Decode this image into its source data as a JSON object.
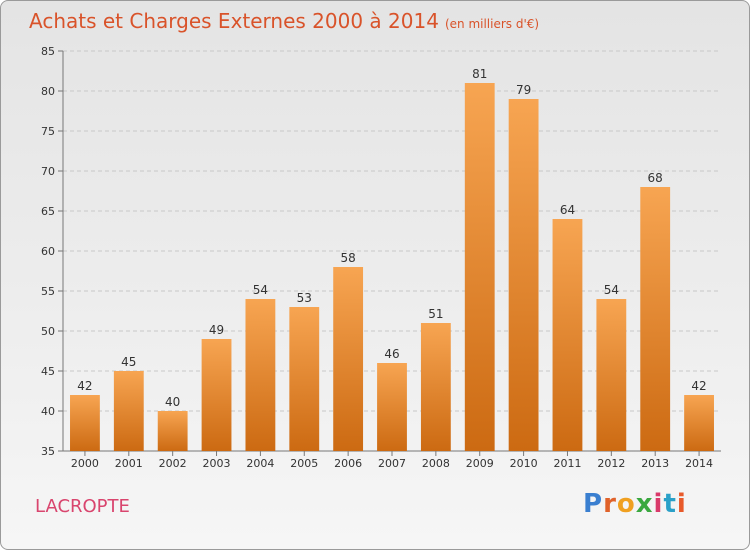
{
  "header": {
    "title": "Achats et Charges Externes 2000 à 2014",
    "subtitle": "(en milliers d'€)"
  },
  "footer": {
    "commune": "LACROPTE",
    "logo_text": "Proxiti"
  },
  "colors": {
    "bar_top": "#f7a552",
    "bar_bottom": "#cc6a12",
    "title": "#d9532a",
    "commune": "#d9456e"
  },
  "chart_data": {
    "type": "bar",
    "categories": [
      "2000",
      "2001",
      "2002",
      "2003",
      "2004",
      "2005",
      "2006",
      "2007",
      "2008",
      "2009",
      "2010",
      "2011",
      "2012",
      "2013",
      "2014"
    ],
    "values": [
      42,
      45,
      40,
      49,
      54,
      53,
      58,
      46,
      51,
      81,
      79,
      64,
      54,
      68,
      42
    ],
    "title": "Achats et Charges Externes 2000 à 2014",
    "xlabel": "",
    "ylabel": "",
    "ylim": [
      35,
      85
    ],
    "yticks": [
      35,
      40,
      45,
      50,
      55,
      60,
      65,
      70,
      75,
      80,
      85
    ],
    "grid": true,
    "data_labels": true
  }
}
